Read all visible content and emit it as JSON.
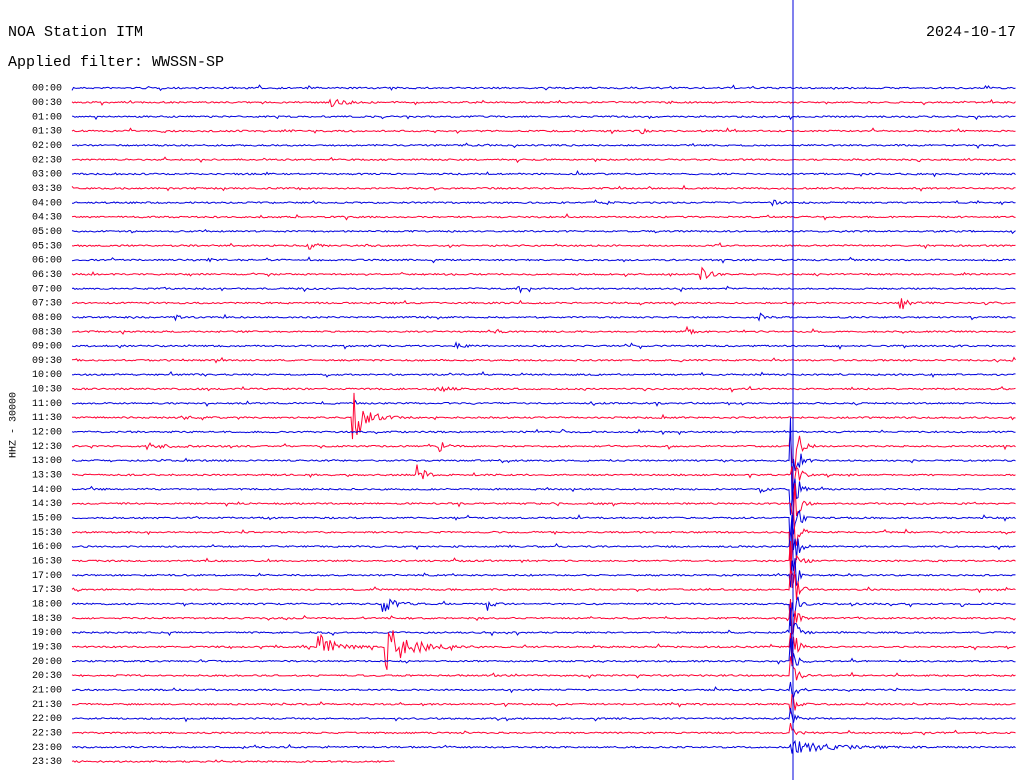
{
  "header": {
    "title": "NOA Station ITM",
    "date": "2024-10-17",
    "filter": "Applied filter: WWSSN-SP"
  },
  "side_label": "HHZ - 30000",
  "rows": [
    "00:00",
    "00:30",
    "01:00",
    "01:30",
    "02:00",
    "02:30",
    "03:00",
    "03:30",
    "04:00",
    "04:30",
    "05:00",
    "05:30",
    "06:00",
    "06:30",
    "07:00",
    "07:30",
    "08:00",
    "08:30",
    "09:00",
    "09:30",
    "10:00",
    "10:30",
    "11:00",
    "11:30",
    "12:00",
    "12:30",
    "13:00",
    "13:30",
    "14:00",
    "14:30",
    "15:00",
    "15:30",
    "16:00",
    "16:30",
    "17:00",
    "17:30",
    "18:00",
    "18:30",
    "19:00",
    "19:30",
    "20:00",
    "20:30",
    "21:00",
    "21:30",
    "22:00",
    "22:30",
    "23:00",
    "23:30"
  ]
}
